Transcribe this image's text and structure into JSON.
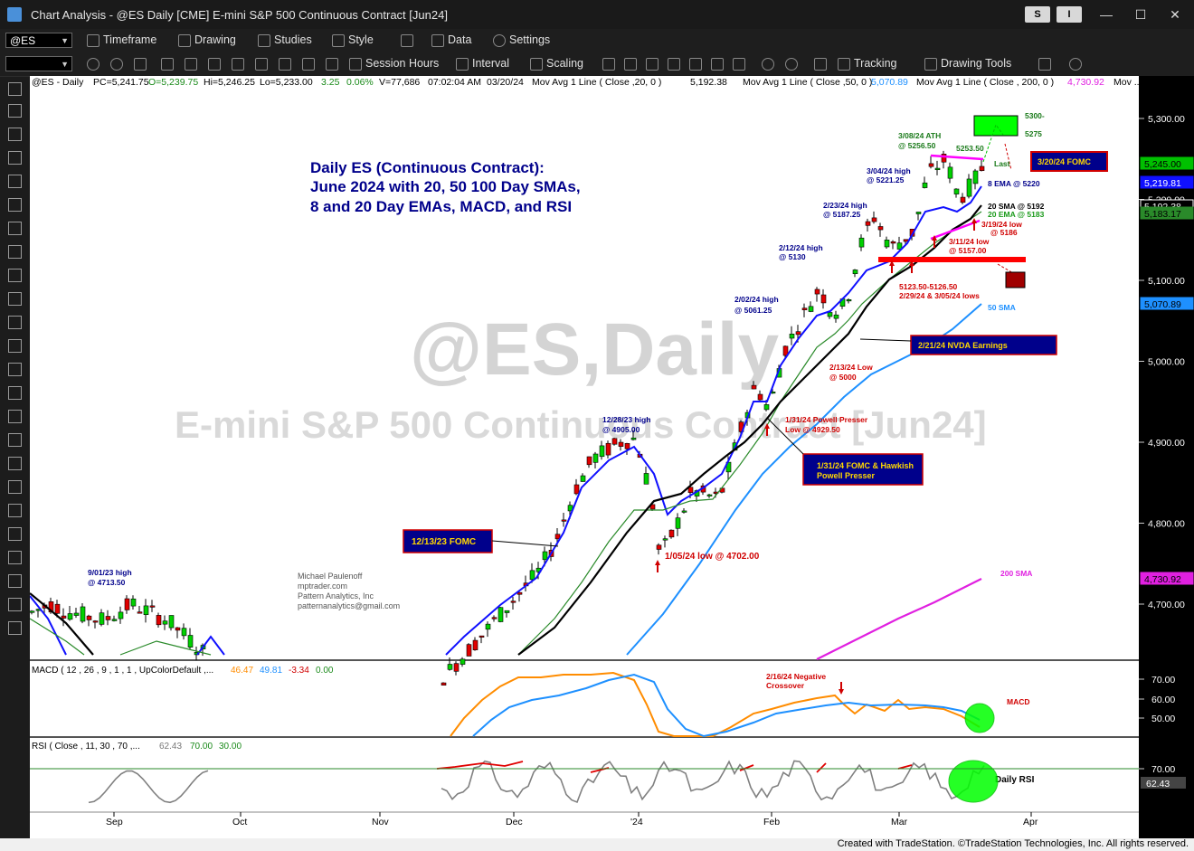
{
  "window": {
    "title": "Chart Analysis - @ES Daily [CME] E-mini S&P 500 Continuous Contract [Jun24]",
    "btn_s": "S",
    "btn_i": "I",
    "minimize": "—",
    "maximize": "☐",
    "close": "✕"
  },
  "toolbar1": {
    "symbol": "@ES",
    "timeframe": "Timeframe",
    "drawing": "Drawing",
    "studies": "Studies",
    "style": "Style",
    "data": "Data",
    "settings": "Settings"
  },
  "toolbar2": {
    "session_hours": "Session Hours",
    "interval": "Interval",
    "scaling": "Scaling",
    "tracking": "Tracking",
    "drawing_tools": "Drawing Tools"
  },
  "chart_info": {
    "symbol": "@ES - Daily",
    "pc": "PC=5,241.75",
    "o": "O=5,239.75",
    "hi": "Hi=5,246.25",
    "lo": "Lo=5,233.00",
    "chg": "3.25",
    "pct": "0.06%",
    "vol": "V=77,686",
    "time": "07:02:04 AM",
    "date": "03/20/24",
    "ma20_label": "Mov Avg 1 Line ( Close ,20, 0 )",
    "ma20_val": "5,192.38",
    "ma50_label": "Mov Avg 1 Line ( Close ,50, 0 )",
    "ma50_val": "5,070.89",
    "ma200_label": "Mov Avg 1 Line ( Close , 200, 0 )",
    "ma200_val": "4,730.92",
    "more": "Mov ...."
  },
  "watermark": {
    "line1": "@ES,Daily",
    "line2": "E-mini S&P 500 Continuous Contract [Jun24]"
  },
  "headline": {
    "line1": "Daily ES (Continuous Contract):",
    "line2": "June 2024 with 20, 50 100 Day SMAs,",
    "line3": "8 and 20 Day EMAs, MACD, and RSI"
  },
  "author": {
    "name": "Michael Paulenoff",
    "site": "mptrader.com",
    "company": "Pattern Analytics, Inc",
    "email": "patternanalytics@gmail.com"
  },
  "annotations": {
    "ath": "3/08/24 ATH",
    "ath_val": "@ 5256.50",
    "h5253": "5253.50",
    "t5300": "5300-",
    "t5275": "5275",
    "last": "Last",
    "fomc_320": "3/20/24 FOMC",
    "h304": "3/04/24 high",
    "h304_val": "@ 5221.25",
    "ema8": "8 EMA @ 5220",
    "sma20": "20 SMA @ 5192",
    "ema20": "20 EMA @ 5183",
    "h223": "2/23/24 high",
    "h223_val": "@ 5187.25",
    "l319": "3/19/24 low",
    "l319_val": "@ 5186",
    "l311": "3/11/24 low",
    "l311_val": "@ 5157.00",
    "h212": "2/12/24 high",
    "h212_val": "@ 5130",
    "zone": "5123.50-5126.50",
    "zone_lows": "2/29/24 & 3/05/24 lows",
    "h202": "2/02/24 high",
    "h202_val": "@ 5061.25",
    "sma50": "50 SMA",
    "nvda": "2/21/24 NVDA Earnings",
    "l213": "2/13/24 Low",
    "l213_val": "@ 5000",
    "powell_low": "1/31/24 Powell Presser",
    "powell_low_val": "Low @ 4929.50",
    "fomc_131_l1": "1/31/24 FOMC & Hawkish",
    "fomc_131_l2": "Powell Presser",
    "h1228": "12/28/23 high",
    "h1228_val": "@ 4905.00",
    "fomc_1213": "12/13/23 FOMC",
    "l105": "1/05/24 low @ 4702.00",
    "h901": "9/01/23 high",
    "h901_val": "@ 4713.50",
    "sma200": "200 SMA",
    "neg_cross_l1": "2/16/24 Negative",
    "neg_cross_l2": "Crossover",
    "macd_lbl": "MACD",
    "rsi_lbl": "Daily RSI"
  },
  "macd_info": {
    "label": "MACD ( 12 , 26 , 9 , 1 , 1 , UpColorDefault ,...",
    "v1": "46.47",
    "v2": "49.81",
    "v3": "-3.34",
    "v4": "0.00"
  },
  "rsi_info": {
    "label": "RSI ( Close , 11, 30 , 70 ,...",
    "v1": "62.43",
    "v2": "70.00",
    "v3": "30.00"
  },
  "price_axis": {
    "ticks": [
      "5,300.00",
      "5,200.00",
      "5,100.00",
      "5,000.00",
      "4,900.00",
      "4,800.00",
      "4,700.00"
    ],
    "tags": [
      "5,245.00",
      "5,219.81",
      "5,192.38",
      "5,183.17",
      "5,070.89",
      "4,730.92"
    ]
  },
  "macd_axis": {
    "ticks": [
      "70.00",
      "60.00",
      "50.00"
    ]
  },
  "rsi_axis": {
    "ticks": [
      "70.00",
      "62.43"
    ]
  },
  "time_axis": {
    "labels": [
      "Sep",
      "Oct",
      "Nov",
      "Dec",
      "'24",
      "Feb",
      "Mar",
      "Apr"
    ]
  },
  "colors": {
    "up": "#00d000",
    "down": "#e00000",
    "ema8": "#1010ff",
    "sma20": "#000000",
    "ema20": "#2a8a2a",
    "sma50": "#1e90ff",
    "sma200": "#e020e0",
    "macd": "#ff8c00",
    "signal": "#1e90ff",
    "annot_blue": "#00008b",
    "annot_red": "#d00000",
    "annot_green": "#1a7a1a"
  },
  "chart_data": {
    "type": "candlestick",
    "instrument": "@ES Daily",
    "ylim": [
      4620,
      5330
    ],
    "price_ticks": [
      5300,
      5200,
      5100,
      5000,
      4900,
      4800,
      4700
    ],
    "months": [
      "Sep",
      "Oct",
      "Nov",
      "Dec",
      "'24",
      "Feb",
      "Mar",
      "Apr"
    ],
    "candles_visible": "late Oct 2023 – 03/20/24",
    "key_levels": {
      "ath_0308": 5256.5,
      "h_0320": 5253.5,
      "h_0304": 5221.25,
      "h_0223": 5187.25,
      "l_0319": 5186,
      "l_0311": 5157,
      "h_0212": 5130,
      "support_zone": [
        5123.5,
        5126.5
      ],
      "h_0202": 5061.25,
      "l_0213": 5000,
      "l_0131": 4929.5,
      "h_1228": 4905,
      "l_0105": 4702,
      "h_0901": 4713.5,
      "target": [
        5275,
        5300
      ]
    },
    "last_values": {
      "close": 5245,
      "ema8": 5219.81,
      "sma20": 5192.38,
      "ema20": 5183.17,
      "sma50": 5070.89,
      "sma200": 4730.92
    },
    "macd": {
      "macd": 46.47,
      "signal": 49.81,
      "hist": -3.34,
      "zero": 0,
      "ylim": [
        40,
        75
      ]
    },
    "rsi": {
      "value": 62.43,
      "overbought": 70,
      "oversold": 30
    }
  }
}
